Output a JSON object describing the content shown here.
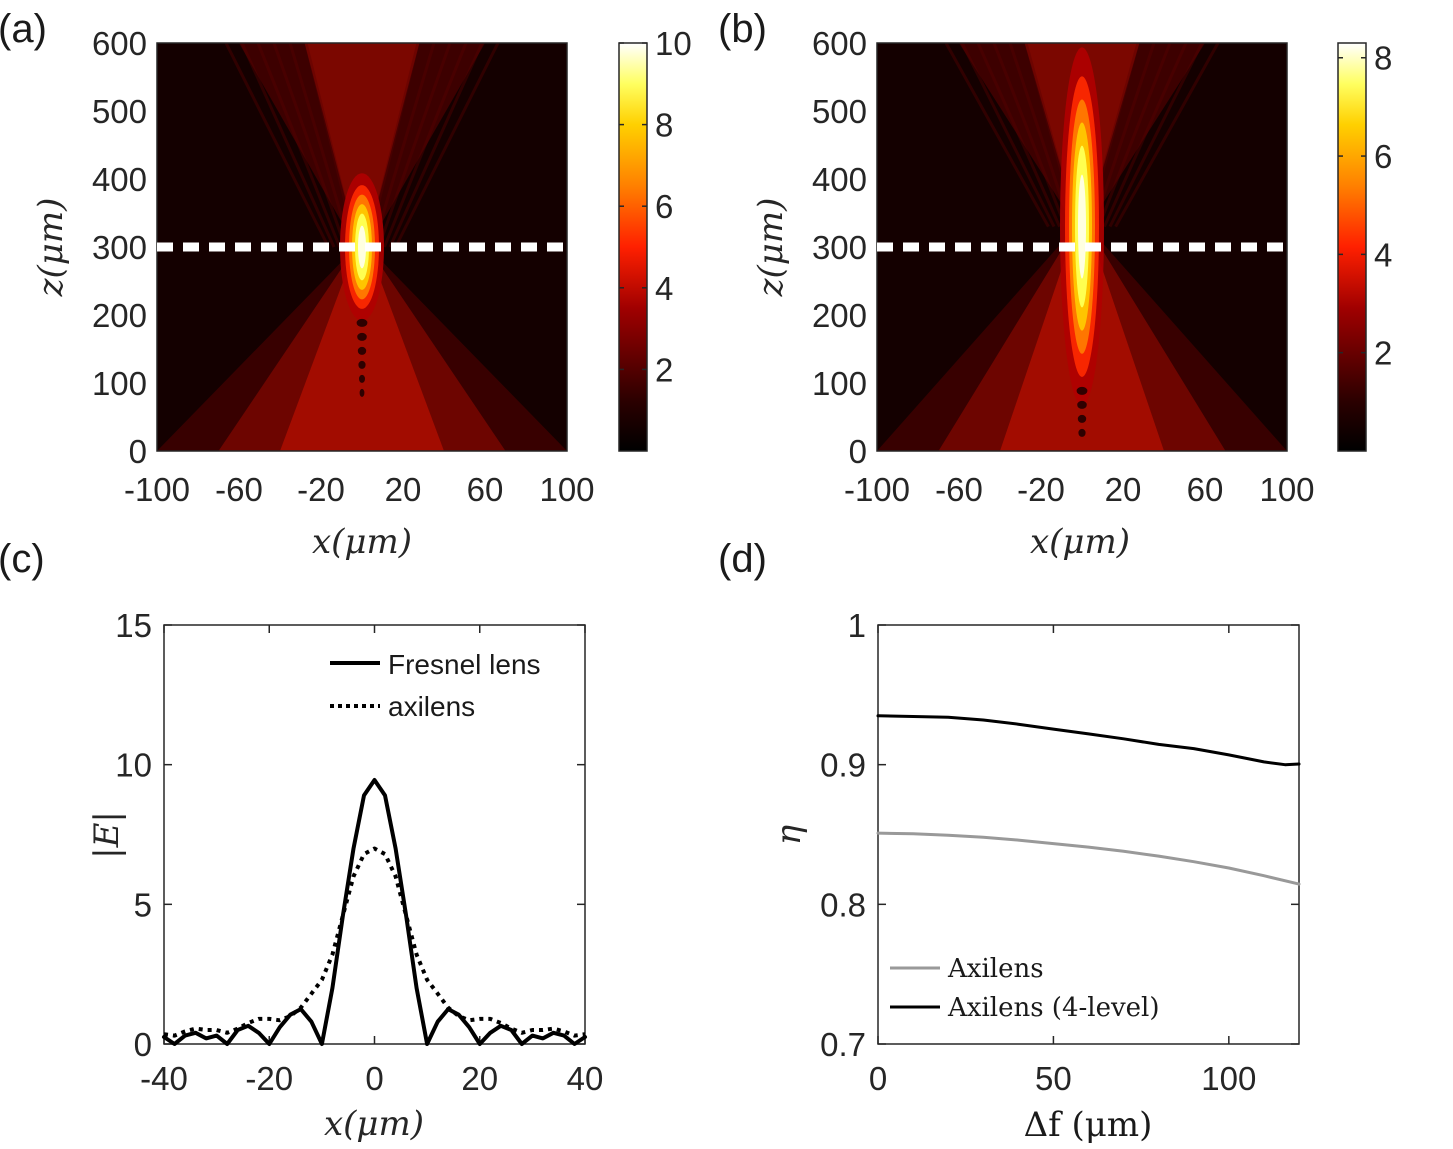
{
  "chart_data": [
    {
      "panel": "(a)",
      "type": "heatmap",
      "title": "",
      "xlabel": "x(μm)",
      "ylabel": "z(μm)",
      "xlim": [
        -100,
        100
      ],
      "ylim": [
        0,
        600
      ],
      "xticks": [
        "-100",
        "-60",
        "-20",
        "20",
        "60",
        "100"
      ],
      "xtick_values": [
        -100,
        -60,
        -20,
        20,
        60,
        100
      ],
      "yticks": [
        "0",
        "100",
        "200",
        "300",
        "400",
        "500",
        "600"
      ],
      "ytick_values": [
        0,
        100,
        200,
        300,
        400,
        500,
        600
      ],
      "colorbar": {
        "ticks": [
          "2",
          "4",
          "6",
          "8",
          "10"
        ],
        "tick_values": [
          2,
          4,
          6,
          8,
          10
        ],
        "range": [
          0,
          10
        ]
      },
      "focus": {
        "x": 0,
        "z": 300,
        "peak": 10,
        "z_half_length": 70
      },
      "cut_line_z": 300,
      "colors": {
        "low": "#000000",
        "mid": "#e02000",
        "high": "#ffff40",
        "top": "#ffffff"
      }
    },
    {
      "panel": "(b)",
      "type": "heatmap",
      "title": "",
      "xlabel": "x(μm)",
      "ylabel": "z(μm)",
      "xlim": [
        -100,
        100
      ],
      "ylim": [
        0,
        600
      ],
      "xticks": [
        "-100",
        "-60",
        "-20",
        "20",
        "60",
        "100"
      ],
      "xtick_values": [
        -100,
        -60,
        -20,
        20,
        60,
        100
      ],
      "yticks": [
        "0",
        "100",
        "200",
        "300",
        "400",
        "500",
        "600"
      ],
      "ytick_values": [
        0,
        100,
        200,
        300,
        400,
        500,
        600
      ],
      "colorbar": {
        "ticks": [
          "2",
          "4",
          "6",
          "8"
        ],
        "tick_values": [
          2,
          4,
          6,
          8
        ],
        "range": [
          0,
          8.3
        ]
      },
      "focus": {
        "x": 0,
        "z": 330,
        "peak": 8.3,
        "z_half_length": 170
      },
      "cut_line_z": 300,
      "colors": {
        "low": "#000000",
        "mid": "#e02000",
        "high": "#ffff40",
        "top": "#ffffff"
      }
    },
    {
      "panel": "(c)",
      "type": "line",
      "title": "",
      "xlabel": "x(μm)",
      "ylabel": "|E|",
      "xlim": [
        -40,
        40
      ],
      "ylim": [
        0,
        15
      ],
      "xticks": [
        "-40",
        "-20",
        "0",
        "20",
        "40"
      ],
      "xtick_values": [
        -40,
        -20,
        0,
        20,
        40
      ],
      "yticks": [
        "0",
        "5",
        "10",
        "15"
      ],
      "ytick_values": [
        0,
        5,
        10,
        15
      ],
      "legend_position": "top-right",
      "series": [
        {
          "name": "Fresnel lens",
          "style": "solid",
          "color": "#000000",
          "x": [
            -40,
            -38,
            -36,
            -34,
            -32,
            -30,
            -28,
            -26,
            -24,
            -22,
            -20,
            -18,
            -16,
            -14,
            -12,
            -10,
            -8,
            -6,
            -4,
            -2,
            0,
            2,
            4,
            6,
            8,
            10,
            12,
            14,
            16,
            18,
            20,
            22,
            24,
            26,
            28,
            30,
            32,
            34,
            36,
            38,
            40
          ],
          "values": [
            0.25,
            0.0,
            0.3,
            0.4,
            0.2,
            0.3,
            0.0,
            0.5,
            0.65,
            0.4,
            0.0,
            0.6,
            1.05,
            1.25,
            0.8,
            0.0,
            2.0,
            4.6,
            7.0,
            8.9,
            9.45,
            8.9,
            7.0,
            4.6,
            2.0,
            0.0,
            0.8,
            1.25,
            1.05,
            0.6,
            0.0,
            0.4,
            0.65,
            0.5,
            0.0,
            0.3,
            0.2,
            0.4,
            0.3,
            0.0,
            0.25
          ]
        },
        {
          "name": "axilens",
          "style": "dotted",
          "color": "#000000",
          "x": [
            -40,
            -38,
            -36,
            -34,
            -32,
            -30,
            -28,
            -26,
            -24,
            -22,
            -20,
            -18,
            -16,
            -14,
            -12,
            -10,
            -8,
            -6,
            -4,
            -2,
            0,
            2,
            4,
            6,
            8,
            10,
            12,
            14,
            16,
            18,
            20,
            22,
            24,
            26,
            28,
            30,
            32,
            34,
            36,
            38,
            40
          ],
          "values": [
            0.35,
            0.3,
            0.45,
            0.55,
            0.5,
            0.5,
            0.4,
            0.55,
            0.75,
            0.9,
            0.9,
            0.85,
            1.0,
            1.3,
            1.8,
            2.3,
            3.2,
            4.6,
            6.0,
            6.8,
            7.0,
            6.8,
            6.0,
            4.6,
            3.2,
            2.3,
            1.8,
            1.3,
            1.0,
            0.85,
            0.9,
            0.9,
            0.75,
            0.55,
            0.4,
            0.5,
            0.5,
            0.55,
            0.45,
            0.3,
            0.35
          ]
        }
      ]
    },
    {
      "panel": "(d)",
      "type": "line",
      "title": "",
      "xlabel": "Δf  (μm)",
      "ylabel": "η",
      "xlim": [
        0,
        120
      ],
      "ylim": [
        0.7,
        1.0
      ],
      "xticks": [
        "0",
        "50",
        "100"
      ],
      "xtick_values": [
        0,
        50,
        100
      ],
      "yticks": [
        "0.7",
        "0.8",
        "0.9",
        "1"
      ],
      "ytick_values": [
        0.7,
        0.8,
        0.9,
        1.0
      ],
      "legend_position": "bottom-left",
      "series": [
        {
          "name": "Axilens",
          "style": "solid",
          "color": "#999999",
          "x": [
            0,
            10,
            20,
            30,
            40,
            50,
            60,
            70,
            80,
            90,
            100,
            110,
            120
          ],
          "values": [
            0.851,
            0.8505,
            0.8495,
            0.848,
            0.846,
            0.8435,
            0.841,
            0.838,
            0.8345,
            0.8305,
            0.826,
            0.8205,
            0.8145
          ]
        },
        {
          "name": "Axilens (4-level)",
          "style": "solid",
          "color": "#000000",
          "x": [
            0,
            10,
            20,
            30,
            40,
            50,
            60,
            70,
            80,
            90,
            100,
            110,
            116,
            120
          ],
          "values": [
            0.935,
            0.9345,
            0.934,
            0.932,
            0.929,
            0.9255,
            0.922,
            0.9185,
            0.9145,
            0.9115,
            0.907,
            0.902,
            0.9,
            0.9005
          ]
        }
      ]
    }
  ]
}
